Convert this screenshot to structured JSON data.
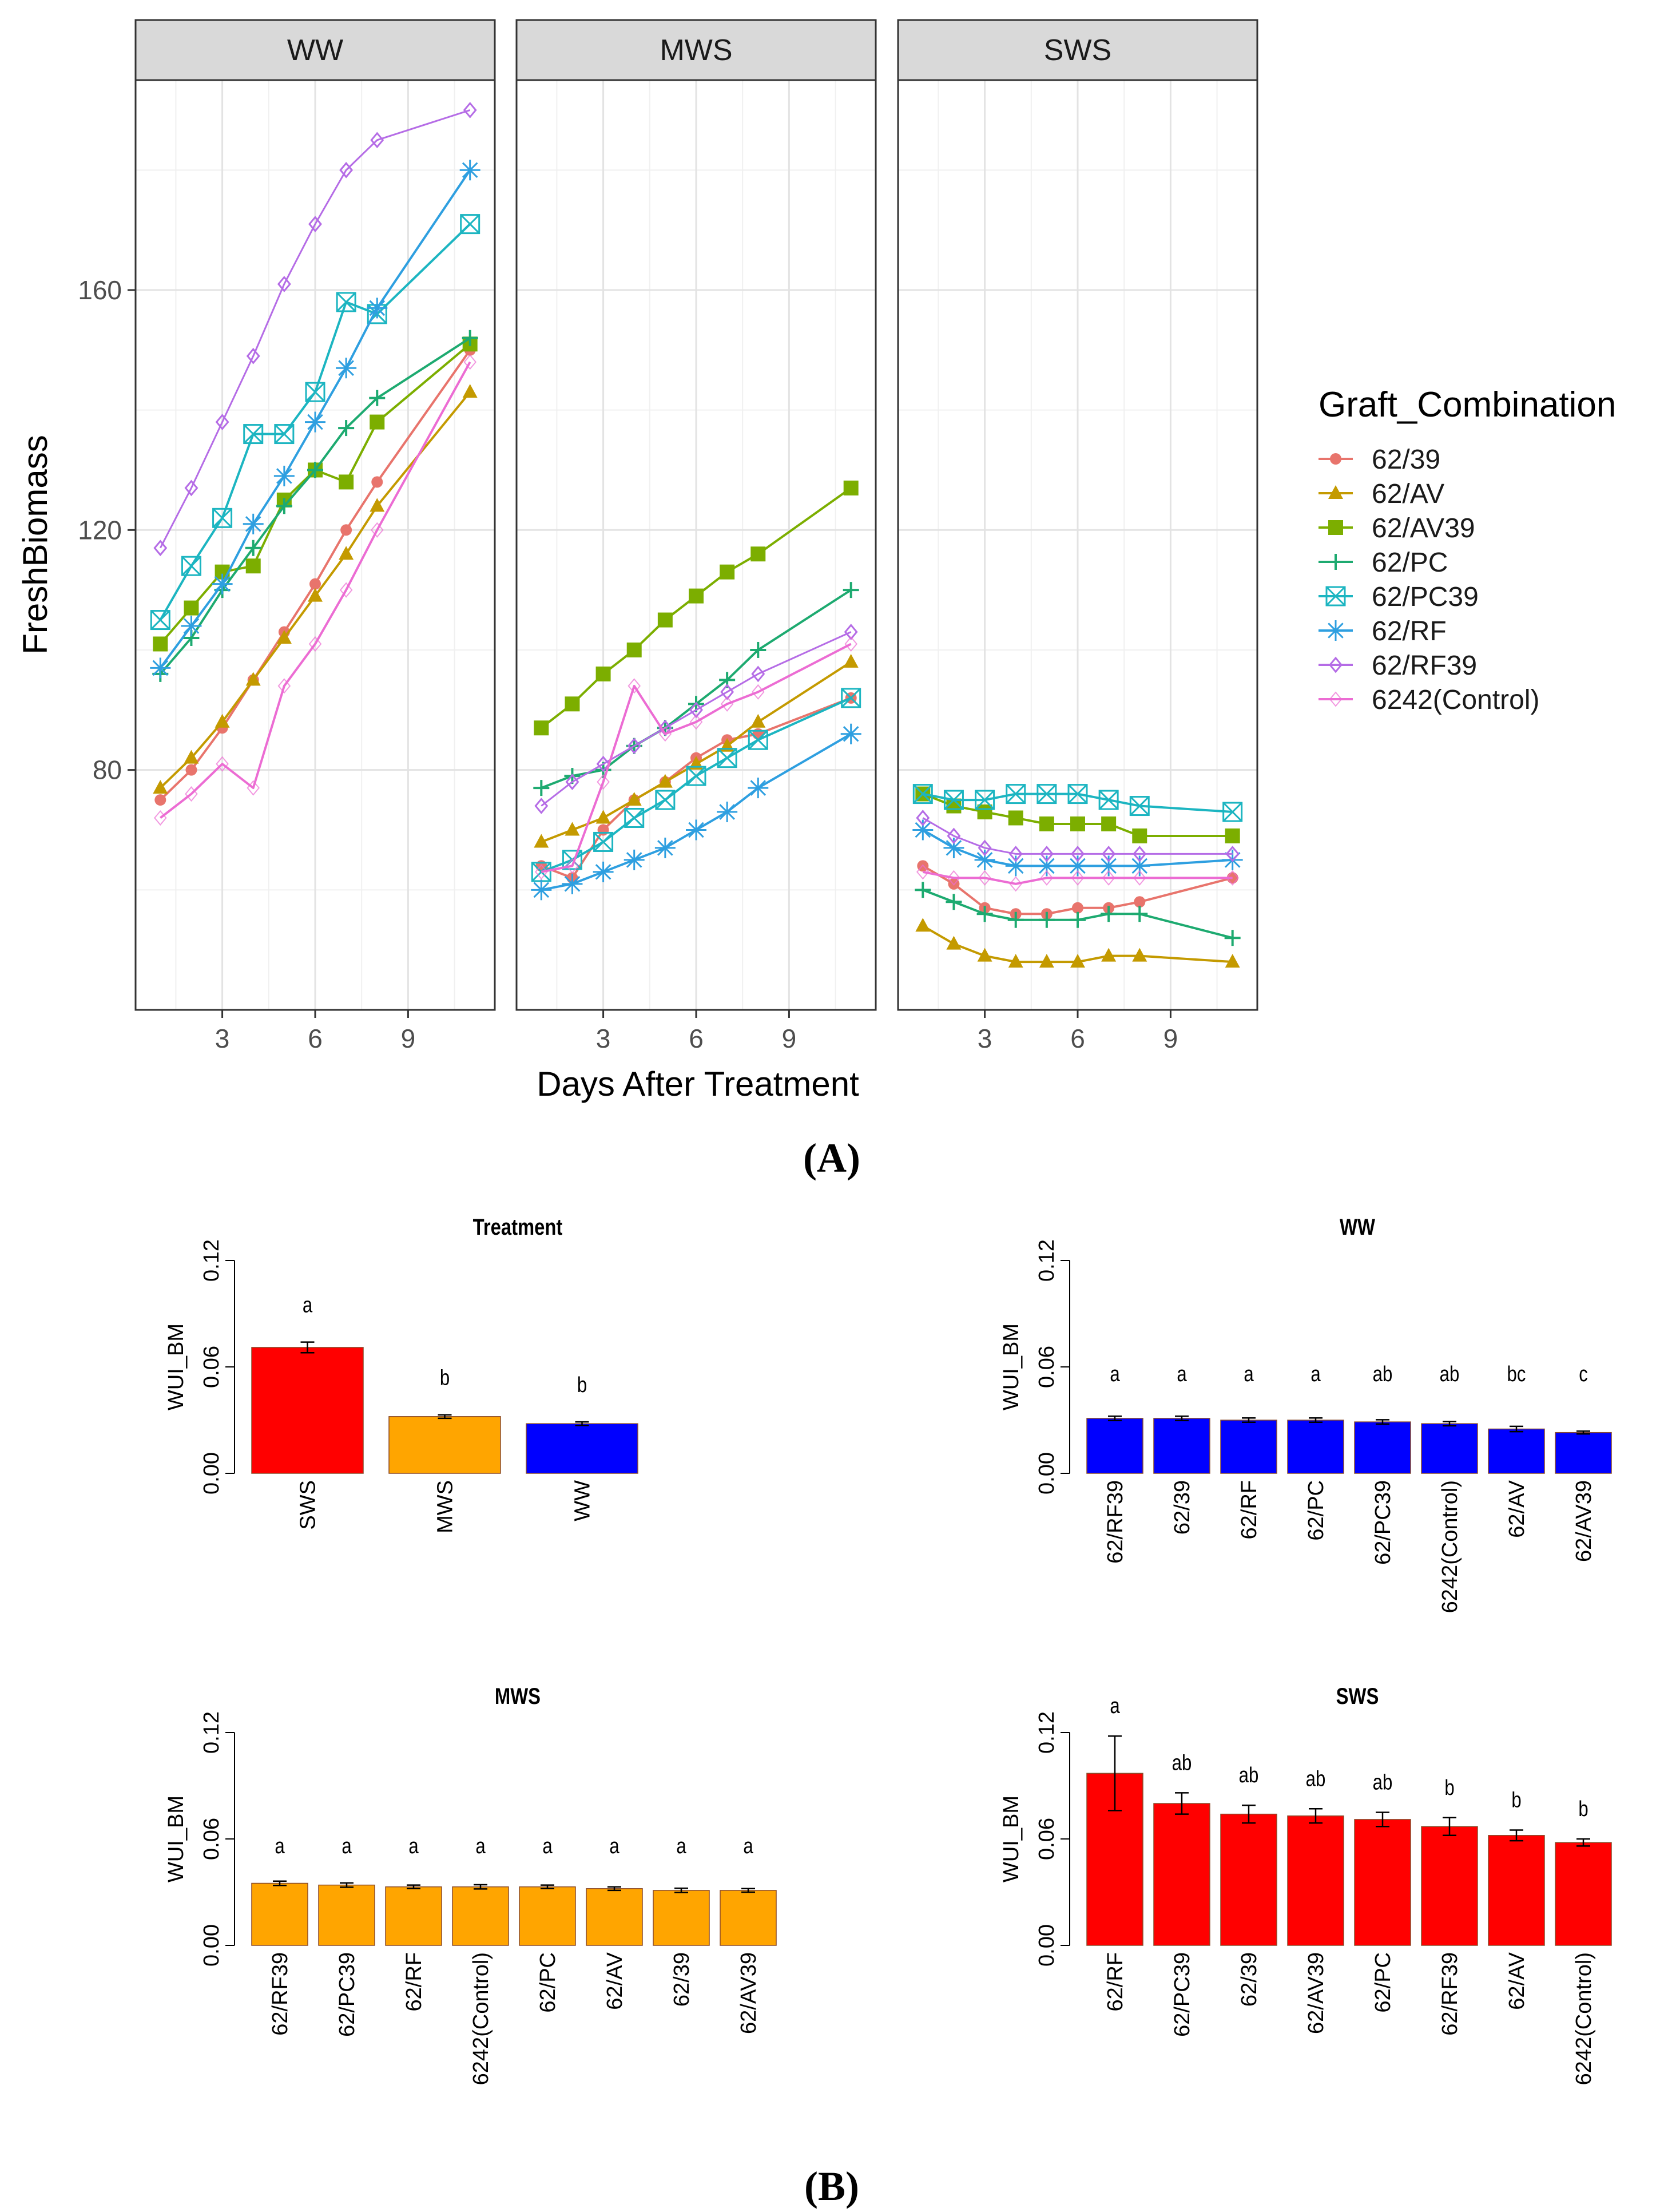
{
  "figure": {
    "label_a": "(A)",
    "label_b": "(B)"
  },
  "chart_data": [
    {
      "type": "line",
      "title": "",
      "xlabel": "Days After Treatment",
      "ylabel": "FreshBiomass",
      "xlim": [
        0.2,
        11.8
      ],
      "ylim": [
        40,
        195
      ],
      "x_ticks": [
        3,
        6,
        9
      ],
      "y_ticks": [
        80,
        120,
        160
      ],
      "grid": true,
      "legend": {
        "title": "Graft_Combination",
        "placement": "right"
      },
      "facets": [
        "WW",
        "MWS",
        "SWS"
      ],
      "x": [
        1,
        2,
        3,
        4,
        5,
        6,
        7,
        8,
        11
      ],
      "series": [
        {
          "name": "62/39",
          "color": "#e8746c",
          "marker": "circle",
          "values": {
            "WW": [
              75,
              80,
              87,
              95,
              103,
              111,
              120,
              128,
              150
            ],
            "MWS": [
              64,
              62,
              70,
              75,
              78,
              82,
              85,
              86,
              92
            ],
            "SWS": [
              64,
              61,
              57,
              56,
              56,
              57,
              57,
              58,
              62
            ]
          }
        },
        {
          "name": "62/AV",
          "color": "#c49a00",
          "marker": "triangle",
          "values": {
            "WW": [
              77,
              82,
              88,
              95,
              102,
              109,
              116,
              124,
              143
            ],
            "MWS": [
              68,
              70,
              72,
              75,
              78,
              81,
              84,
              88,
              98
            ],
            "SWS": [
              54,
              51,
              49,
              48,
              48,
              48,
              49,
              49,
              48
            ]
          }
        },
        {
          "name": "62/AV39",
          "color": "#7cae00",
          "marker": "square",
          "values": {
            "WW": [
              101,
              107,
              113,
              114,
              125,
              130,
              128,
              138,
              151
            ],
            "MWS": [
              87,
              91,
              96,
              100,
              105,
              109,
              113,
              116,
              127
            ],
            "SWS": [
              76,
              74,
              73,
              72,
              71,
              71,
              71,
              69,
              69
            ]
          }
        },
        {
          "name": "62/PC",
          "color": "#1daa70",
          "marker": "plus",
          "values": {
            "WW": [
              96,
              102,
              110,
              117,
              124,
              130,
              137,
              142,
              152
            ],
            "MWS": [
              77,
              79,
              80,
              84,
              87,
              91,
              95,
              100,
              110
            ],
            "SWS": [
              60,
              58,
              56,
              55,
              55,
              55,
              56,
              56,
              52
            ]
          }
        },
        {
          "name": "62/PC39",
          "color": "#1cb5c1",
          "marker": "square-x",
          "values": {
            "WW": [
              105,
              114,
              122,
              136,
              136,
              143,
              158,
              156,
              171
            ],
            "MWS": [
              63,
              65,
              68,
              72,
              75,
              79,
              82,
              85,
              92
            ],
            "SWS": [
              76,
              75,
              75,
              76,
              76,
              76,
              75,
              74,
              73
            ]
          }
        },
        {
          "name": "62/RF",
          "color": "#2e9fe0",
          "marker": "asterisk",
          "values": {
            "WW": [
              97,
              104,
              111,
              121,
              129,
              138,
              147,
              157,
              180
            ],
            "MWS": [
              60,
              61,
              63,
              65,
              67,
              70,
              73,
              77,
              86
            ],
            "SWS": [
              70,
              67,
              65,
              64,
              64,
              64,
              64,
              64,
              65
            ]
          }
        },
        {
          "name": "62/RF39",
          "color": "#b56ce6",
          "marker": "diamond",
          "values": {
            "WW": [
              117,
              127,
              138,
              149,
              161,
              171,
              180,
              185,
              190
            ],
            "MWS": [
              74,
              78,
              81,
              84,
              87,
              90,
              93,
              96,
              103
            ],
            "SWS": [
              72,
              69,
              67,
              66,
              66,
              66,
              66,
              66,
              66
            ]
          }
        },
        {
          "name": "6242(Control)",
          "color": "#ec6cd3",
          "marker": "diamond-open",
          "values": {
            "WW": [
              72,
              76,
              81,
              77,
              94,
              101,
              110,
              120,
              148
            ],
            "MWS": [
              63,
              64,
              78,
              94,
              86,
              88,
              91,
              93,
              101
            ],
            "SWS": [
              63,
              62,
              62,
              61,
              62,
              62,
              62,
              62,
              62
            ]
          }
        }
      ]
    },
    {
      "type": "bar",
      "title": "Treatment",
      "ylabel": "WUI_BM",
      "ylim": [
        0,
        0.12
      ],
      "y_ticks": [
        "0.00",
        "0.06",
        "0.12"
      ],
      "color": "mixed",
      "categories": [
        "SWS",
        "MWS",
        "WW"
      ],
      "values": [
        0.071,
        0.032,
        0.028
      ],
      "errors": [
        0.003,
        0.001,
        0.001
      ],
      "bar_colors": [
        "#ff0000",
        "#ffa500",
        "#0000ff"
      ],
      "letters": [
        "a",
        "b",
        "b"
      ]
    },
    {
      "type": "bar",
      "title": "WW",
      "ylabel": "WUI_BM",
      "ylim": [
        0,
        0.12
      ],
      "y_ticks": [
        "0.00",
        "0.06",
        "0.12"
      ],
      "color": "#0000ff",
      "categories": [
        "62/RF39",
        "62/39",
        "62/RF",
        "62/PC",
        "62/PC39",
        "6242(Control)",
        "62/AV",
        "62/AV39"
      ],
      "values": [
        0.031,
        0.031,
        0.03,
        0.03,
        0.029,
        0.028,
        0.025,
        0.023
      ],
      "errors": [
        0.0012,
        0.0012,
        0.0012,
        0.0012,
        0.0012,
        0.0012,
        0.0015,
        0.0008
      ],
      "letters": [
        "a",
        "a",
        "a",
        "a",
        "ab",
        "ab",
        "bc",
        "c"
      ]
    },
    {
      "type": "bar",
      "title": "MWS",
      "ylabel": "WUI_BM",
      "ylim": [
        0,
        0.12
      ],
      "y_ticks": [
        "0.00",
        "0.06",
        "0.12"
      ],
      "color": "#ffa500",
      "categories": [
        "62/RF39",
        "62/PC39",
        "62/RF",
        "6242(Control)",
        "62/PC",
        "62/AV",
        "62/39",
        "62/AV39"
      ],
      "values": [
        0.035,
        0.034,
        0.033,
        0.033,
        0.033,
        0.032,
        0.031,
        0.031
      ],
      "errors": [
        0.0012,
        0.0012,
        0.001,
        0.0012,
        0.001,
        0.001,
        0.0012,
        0.001
      ],
      "letters": [
        "a",
        "a",
        "a",
        "a",
        "a",
        "a",
        "a",
        "a"
      ]
    },
    {
      "type": "bar",
      "title": "SWS",
      "ylabel": "WUI_BM",
      "ylim": [
        0,
        0.12
      ],
      "y_ticks": [
        "0.00",
        "0.06",
        "0.12"
      ],
      "color": "#ff0000",
      "categories": [
        "62/RF",
        "62/PC39",
        "62/39",
        "62/AV39",
        "62/PC",
        "62/RF39",
        "62/AV",
        "6242(Control)"
      ],
      "values": [
        0.097,
        0.08,
        0.074,
        0.073,
        0.071,
        0.067,
        0.062,
        0.058
      ],
      "errors": [
        0.021,
        0.006,
        0.005,
        0.004,
        0.004,
        0.005,
        0.003,
        0.002
      ],
      "letters": [
        "a",
        "ab",
        "ab",
        "ab",
        "ab",
        "b",
        "b",
        "b"
      ]
    }
  ]
}
